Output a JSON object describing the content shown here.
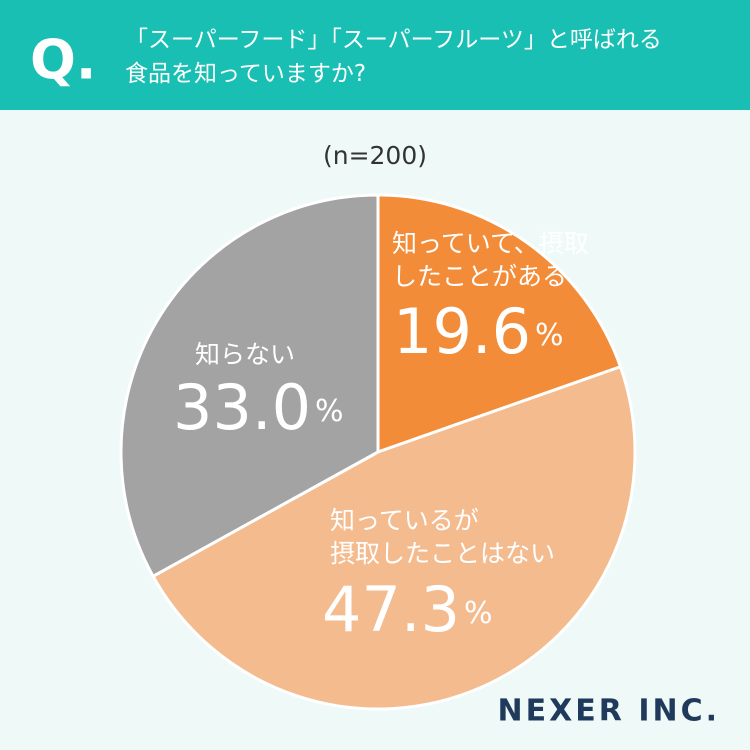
{
  "chart_data": {
    "type": "pie",
    "badge": "Q.",
    "title": "「スーパーフード」「スーパーフルーツ」と呼ばれる\n食品を知っていますか?",
    "subtitle": "(n=200)",
    "categories": [
      "知っていて、摂取\nしたことがある",
      "知っているが\n摂取したことはない",
      "知らない"
    ],
    "values": [
      19.6,
      47.3,
      33.0
    ],
    "value_labels": [
      "19.6%",
      "47.3%",
      "33.0%"
    ],
    "colors": [
      "#f28c38",
      "#f4bb8f",
      "#a3a3a3"
    ],
    "brand": "NEXER INC."
  }
}
